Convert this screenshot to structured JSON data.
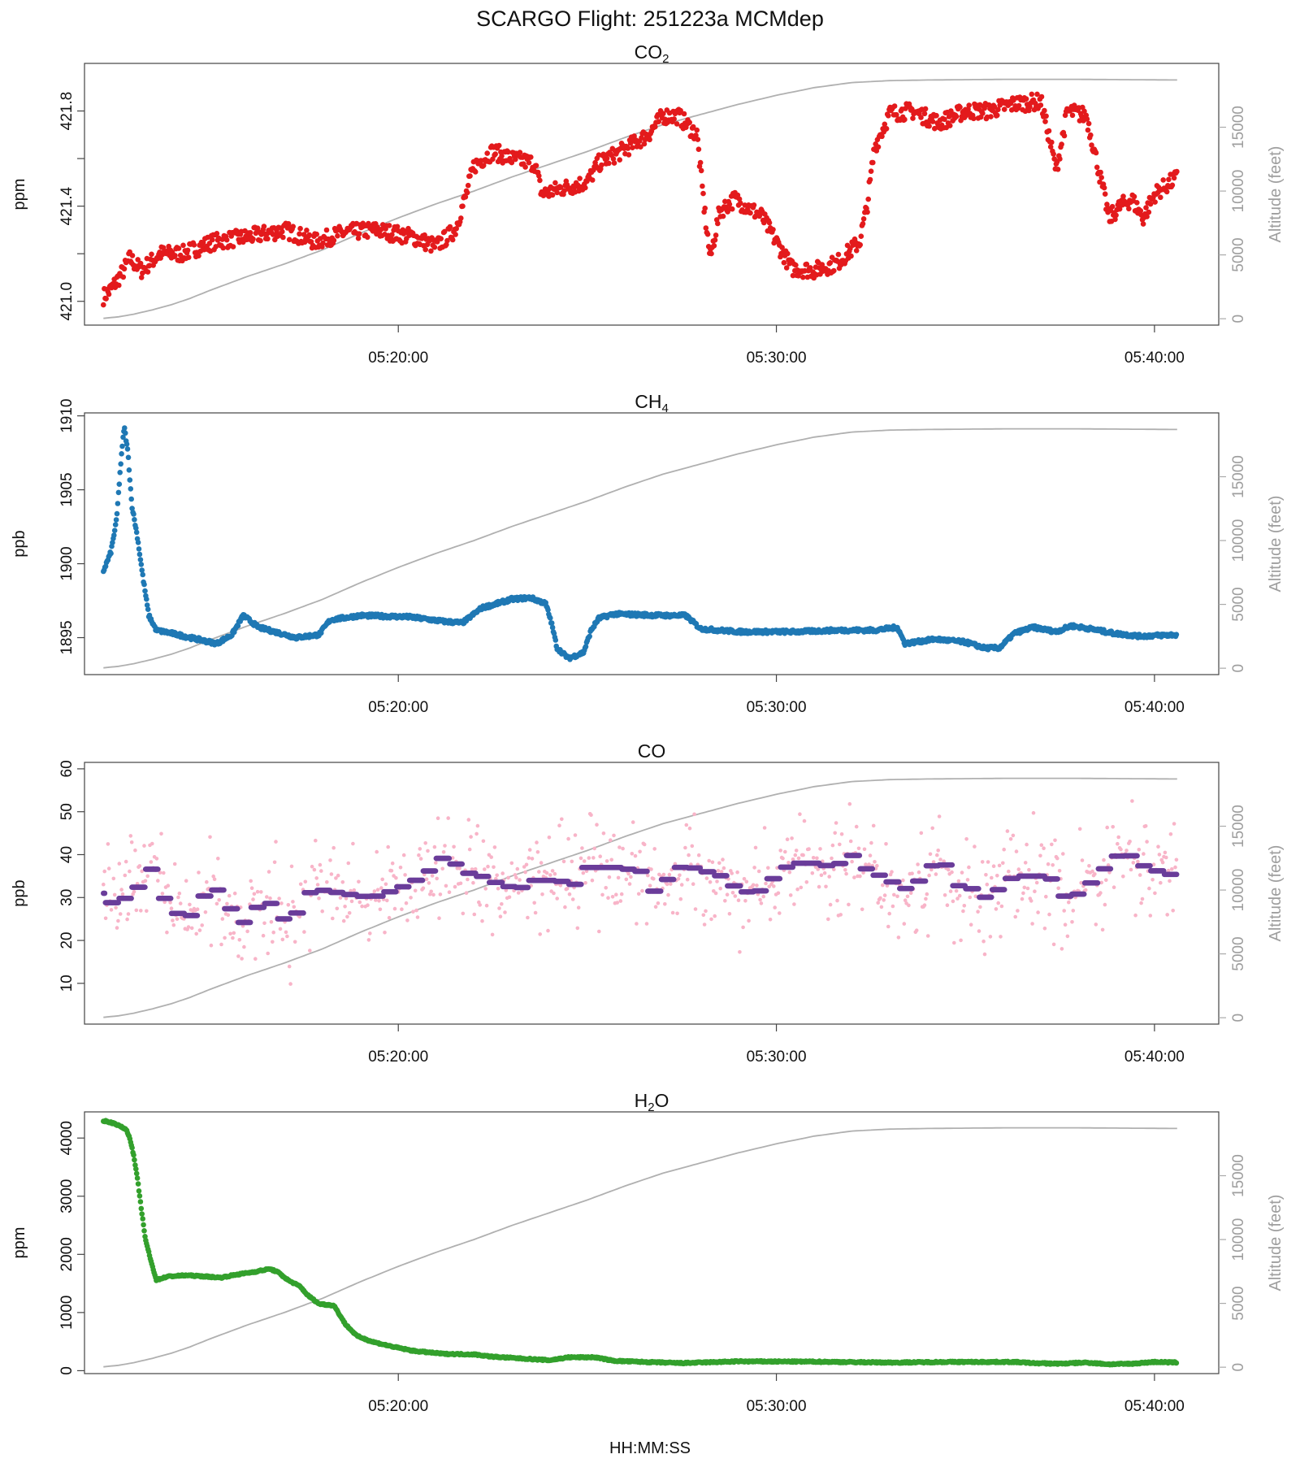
{
  "figure": {
    "title": "SCARGO Flight: 251223a  MCMdep",
    "xlabel": "HH:MM:SS"
  },
  "chart_data": [
    {
      "type": "scatter",
      "title_main": "CO",
      "title_sub": "2",
      "ylabel": "ppm",
      "y2label": "Altitude (feet)",
      "ylim": [
        420.9,
        422.0
      ],
      "yticks": [
        "421.0",
        "421.4",
        "421.8"
      ],
      "y2lim": [
        -500,
        20000
      ],
      "y2ticks": [
        "0",
        "5000",
        "10000",
        "15000"
      ],
      "xticks": [
        "05:20:00",
        "05:30:00",
        "05:40:00"
      ],
      "xlim": [
        11.7,
        41.7
      ],
      "color": "#e31a1c",
      "knots": [
        [
          12.2,
          421.02
        ],
        [
          12.4,
          421.05
        ],
        [
          12.7,
          421.12
        ],
        [
          12.9,
          421.18
        ],
        [
          13.2,
          421.13
        ],
        [
          13.7,
          421.2
        ],
        [
          14.3,
          421.2
        ],
        [
          15.1,
          421.25
        ],
        [
          16.0,
          421.27
        ],
        [
          17.0,
          421.3
        ],
        [
          17.8,
          421.25
        ],
        [
          18.6,
          421.29
        ],
        [
          19.4,
          421.3
        ],
        [
          20.4,
          421.27
        ],
        [
          21.0,
          421.23
        ],
        [
          21.5,
          421.3
        ],
        [
          21.8,
          421.45
        ],
        [
          22.0,
          421.57
        ],
        [
          22.5,
          421.63
        ],
        [
          23.0,
          421.6
        ],
        [
          23.6,
          421.58
        ],
        [
          23.8,
          421.45
        ],
        [
          24.2,
          421.47
        ],
        [
          25.0,
          421.5
        ],
        [
          25.3,
          421.58
        ],
        [
          25.9,
          421.63
        ],
        [
          26.6,
          421.7
        ],
        [
          27.0,
          421.78
        ],
        [
          27.4,
          421.78
        ],
        [
          27.9,
          421.7
        ],
        [
          28.1,
          421.38
        ],
        [
          28.25,
          421.18
        ],
        [
          28.5,
          421.38
        ],
        [
          28.9,
          421.43
        ],
        [
          29.6,
          421.36
        ],
        [
          30.0,
          421.25
        ],
        [
          30.4,
          421.14
        ],
        [
          31.0,
          421.13
        ],
        [
          31.6,
          421.16
        ],
        [
          32.2,
          421.25
        ],
        [
          32.4,
          421.4
        ],
        [
          32.6,
          421.65
        ],
        [
          33.0,
          421.79
        ],
        [
          33.6,
          421.8
        ],
        [
          34.3,
          421.75
        ],
        [
          35.0,
          421.8
        ],
        [
          35.6,
          421.8
        ],
        [
          36.3,
          421.83
        ],
        [
          37.0,
          421.84
        ],
        [
          37.2,
          421.7
        ],
        [
          37.4,
          421.55
        ],
        [
          37.7,
          421.8
        ],
        [
          38.2,
          421.78
        ],
        [
          38.5,
          421.57
        ],
        [
          38.8,
          421.35
        ],
        [
          39.1,
          421.4
        ],
        [
          39.4,
          421.43
        ],
        [
          39.7,
          421.35
        ],
        [
          40.0,
          421.45
        ],
        [
          40.6,
          421.52
        ]
      ]
    },
    {
      "type": "scatter",
      "title_main": "CH",
      "title_sub": "4",
      "ylabel": "ppb",
      "y2label": "Altitude (feet)",
      "ylim": [
        1892.5,
        1910.2
      ],
      "yticks": [
        "1895",
        "1900",
        "1905",
        "1910"
      ],
      "y2lim": [
        -500,
        20000
      ],
      "y2ticks": [
        "0",
        "5000",
        "10000",
        "15000"
      ],
      "xticks": [
        "05:20:00",
        "05:30:00",
        "05:40:00"
      ],
      "xlim": [
        11.7,
        41.7
      ],
      "color": "#1f78b4",
      "knots": [
        [
          12.2,
          1899.5
        ],
        [
          12.4,
          1900.8
        ],
        [
          12.55,
          1903.0
        ],
        [
          12.65,
          1906.5
        ],
        [
          12.75,
          1909.3
        ],
        [
          12.85,
          1907.5
        ],
        [
          12.95,
          1904.0
        ],
        [
          13.1,
          1901.8
        ],
        [
          13.25,
          1899.0
        ],
        [
          13.4,
          1896.5
        ],
        [
          13.6,
          1895.5
        ],
        [
          14.0,
          1895.3
        ],
        [
          14.5,
          1895.0
        ],
        [
          15.2,
          1894.6
        ],
        [
          15.6,
          1895.2
        ],
        [
          15.9,
          1896.5
        ],
        [
          16.3,
          1895.7
        ],
        [
          17.3,
          1895.0
        ],
        [
          17.9,
          1895.2
        ],
        [
          18.2,
          1896.2
        ],
        [
          19.0,
          1896.5
        ],
        [
          20.3,
          1896.4
        ],
        [
          21.2,
          1896.1
        ],
        [
          21.7,
          1896.0
        ],
        [
          22.2,
          1897.0
        ],
        [
          23.0,
          1897.6
        ],
        [
          23.5,
          1897.7
        ],
        [
          23.9,
          1897.3
        ],
        [
          24.05,
          1896.0
        ],
        [
          24.2,
          1894.3
        ],
        [
          24.5,
          1893.6
        ],
        [
          24.9,
          1894.0
        ],
        [
          25.1,
          1895.5
        ],
        [
          25.3,
          1896.3
        ],
        [
          25.7,
          1896.6
        ],
        [
          27.0,
          1896.5
        ],
        [
          27.6,
          1896.5
        ],
        [
          28.0,
          1895.6
        ],
        [
          29.0,
          1895.4
        ],
        [
          30.5,
          1895.4
        ],
        [
          31.6,
          1895.5
        ],
        [
          32.6,
          1895.5
        ],
        [
          33.2,
          1895.7
        ],
        [
          33.4,
          1894.6
        ],
        [
          34.2,
          1894.9
        ],
        [
          35.0,
          1894.7
        ],
        [
          35.5,
          1894.3
        ],
        [
          35.9,
          1894.3
        ],
        [
          36.3,
          1895.3
        ],
        [
          36.8,
          1895.7
        ],
        [
          37.4,
          1895.4
        ],
        [
          37.8,
          1895.8
        ],
        [
          38.3,
          1895.6
        ],
        [
          38.9,
          1895.3
        ],
        [
          39.6,
          1895.1
        ],
        [
          40.6,
          1895.2
        ]
      ]
    },
    {
      "type": "scatter",
      "title_main": "CO",
      "title_sub": "",
      "ylabel": "ppb",
      "y2label": "Altitude (feet)",
      "ylim": [
        0.5,
        61.5
      ],
      "yticks": [
        "10",
        "20",
        "30",
        "40",
        "50",
        "60"
      ],
      "y2lim": [
        -500,
        20000
      ],
      "y2ticks": [
        "0",
        "5000",
        "10000",
        "15000"
      ],
      "xticks": [
        "05:20:00",
        "05:30:00",
        "05:40:00"
      ],
      "xlim": [
        11.7,
        41.7
      ],
      "color": "#6a3d9a",
      "raw_color": "#f8b4c8",
      "knots": [
        [
          12.2,
          31
        ],
        [
          12.5,
          28
        ],
        [
          12.8,
          30
        ],
        [
          13.2,
          33
        ],
        [
          13.5,
          37
        ],
        [
          13.8,
          30
        ],
        [
          14.1,
          27
        ],
        [
          14.4,
          24
        ],
        [
          14.8,
          30
        ],
        [
          15.2,
          32
        ],
        [
          15.6,
          27
        ],
        [
          15.9,
          24
        ],
        [
          16.3,
          28
        ],
        [
          16.8,
          29
        ],
        [
          17.1,
          22
        ],
        [
          17.5,
          30
        ],
        [
          17.8,
          32
        ],
        [
          18.5,
          31
        ],
        [
          19.3,
          30
        ],
        [
          20.0,
          32
        ],
        [
          20.7,
          35
        ],
        [
          21.0,
          38
        ],
        [
          21.3,
          40
        ],
        [
          21.7,
          36
        ],
        [
          22.2,
          35
        ],
        [
          22.7,
          33
        ],
        [
          23.2,
          32
        ],
        [
          23.6,
          34
        ],
        [
          24.2,
          34
        ],
        [
          24.7,
          33
        ],
        [
          25.0,
          37
        ],
        [
          25.8,
          37
        ],
        [
          26.5,
          36
        ],
        [
          26.8,
          31
        ],
        [
          27.2,
          35
        ],
        [
          27.6,
          38
        ],
        [
          28.0,
          36
        ],
        [
          28.4,
          36
        ],
        [
          28.8,
          33
        ],
        [
          29.3,
          31
        ],
        [
          29.8,
          32
        ],
        [
          30.0,
          36
        ],
        [
          30.5,
          38
        ],
        [
          31.0,
          38
        ],
        [
          31.6,
          37
        ],
        [
          31.9,
          41
        ],
        [
          32.3,
          37
        ],
        [
          33.0,
          34
        ],
        [
          33.4,
          32
        ],
        [
          34.0,
          35
        ],
        [
          34.3,
          41
        ],
        [
          34.7,
          33
        ],
        [
          35.2,
          32
        ],
        [
          35.7,
          29
        ],
        [
          36.0,
          34
        ],
        [
          36.5,
          35
        ],
        [
          37.0,
          35
        ],
        [
          37.4,
          34
        ],
        [
          37.7,
          29
        ],
        [
          38.0,
          31
        ],
        [
          38.4,
          34
        ],
        [
          38.8,
          38
        ],
        [
          39.2,
          41
        ],
        [
          39.6,
          38
        ],
        [
          40.0,
          36
        ],
        [
          40.3,
          37
        ],
        [
          40.6,
          33
        ]
      ]
    },
    {
      "type": "scatter",
      "title_main": "H",
      "title_sub": "2",
      "title_tail": "O",
      "ylabel": "ppm",
      "y2label": "Altitude (feet)",
      "ylim": [
        -50,
        4450
      ],
      "yticks": [
        "0",
        "1000",
        "2000",
        "3000",
        "4000"
      ],
      "y2lim": [
        -500,
        20000
      ],
      "y2ticks": [
        "0",
        "5000",
        "10000",
        "15000"
      ],
      "xticks": [
        "05:20:00",
        "05:30:00",
        "05:40:00"
      ],
      "xlim": [
        11.7,
        41.7
      ],
      "color": "#33a02c",
      "knots": [
        [
          12.2,
          4300
        ],
        [
          12.5,
          4250
        ],
        [
          12.8,
          4150
        ],
        [
          12.9,
          4000
        ],
        [
          13.0,
          3700
        ],
        [
          13.1,
          3300
        ],
        [
          13.2,
          2800
        ],
        [
          13.3,
          2300
        ],
        [
          13.45,
          1900
        ],
        [
          13.6,
          1560
        ],
        [
          13.9,
          1620
        ],
        [
          14.4,
          1640
        ],
        [
          14.9,
          1620
        ],
        [
          15.3,
          1600
        ],
        [
          15.7,
          1650
        ],
        [
          16.2,
          1700
        ],
        [
          16.6,
          1750
        ],
        [
          16.8,
          1700
        ],
        [
          17.1,
          1550
        ],
        [
          17.4,
          1450
        ],
        [
          17.6,
          1300
        ],
        [
          17.9,
          1150
        ],
        [
          18.3,
          1120
        ],
        [
          18.6,
          800
        ],
        [
          18.9,
          600
        ],
        [
          19.3,
          500
        ],
        [
          19.8,
          420
        ],
        [
          20.4,
          340
        ],
        [
          21.2,
          290
        ],
        [
          22.0,
          280
        ],
        [
          22.5,
          240
        ],
        [
          23.5,
          200
        ],
        [
          24.0,
          180
        ],
        [
          24.5,
          230
        ],
        [
          25.2,
          230
        ],
        [
          25.7,
          170
        ],
        [
          26.5,
          150
        ],
        [
          27.5,
          130
        ],
        [
          29.0,
          160
        ],
        [
          31.0,
          155
        ],
        [
          33.0,
          140
        ],
        [
          34.5,
          150
        ],
        [
          35.5,
          150
        ],
        [
          36.3,
          150
        ],
        [
          36.8,
          130
        ],
        [
          37.5,
          120
        ],
        [
          38.2,
          140
        ],
        [
          38.8,
          110
        ],
        [
          39.4,
          120
        ],
        [
          40.0,
          150
        ],
        [
          40.6,
          140
        ]
      ]
    }
  ],
  "altitude_profile": {
    "label": "Altitude (feet)",
    "color": "#b0b0b0",
    "knots": [
      [
        12.2,
        30
      ],
      [
        12.6,
        150
      ],
      [
        13.0,
        350
      ],
      [
        13.5,
        700
      ],
      [
        14.0,
        1100
      ],
      [
        14.5,
        1600
      ],
      [
        15.0,
        2200
      ],
      [
        16.0,
        3300
      ],
      [
        17.0,
        4300
      ],
      [
        18.0,
        5400
      ],
      [
        19.0,
        6700
      ],
      [
        20.0,
        7900
      ],
      [
        21.0,
        9000
      ],
      [
        22.0,
        10000
      ],
      [
        23.0,
        11100
      ],
      [
        24.0,
        12100
      ],
      [
        25.0,
        13100
      ],
      [
        26.0,
        14200
      ],
      [
        27.0,
        15200
      ],
      [
        28.0,
        16000
      ],
      [
        29.0,
        16800
      ],
      [
        30.0,
        17500
      ],
      [
        31.0,
        18100
      ],
      [
        32.0,
        18500
      ],
      [
        33.0,
        18650
      ],
      [
        34.0,
        18700
      ],
      [
        36.0,
        18750
      ],
      [
        38.0,
        18750
      ],
      [
        40.6,
        18700
      ]
    ]
  }
}
